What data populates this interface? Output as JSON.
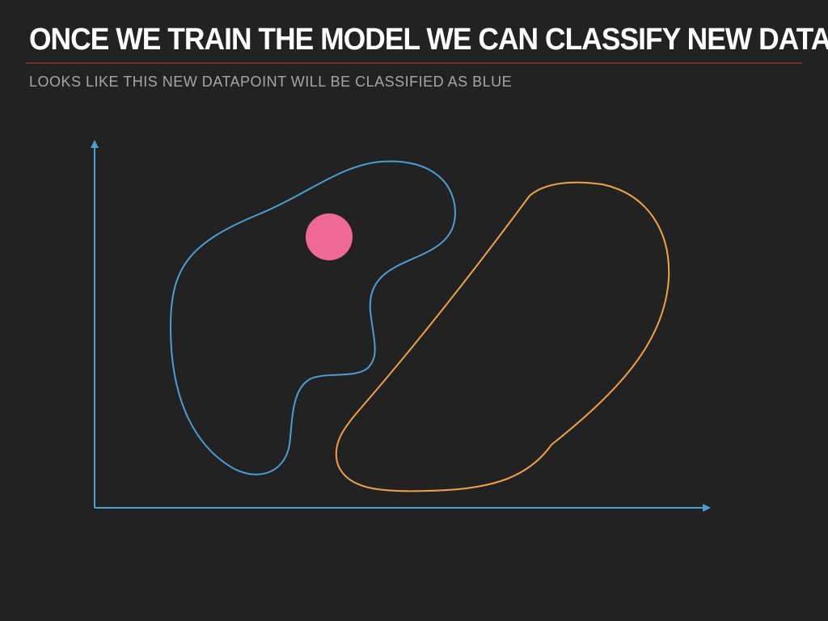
{
  "slide": {
    "title": "ONCE WE TRAIN THE MODEL WE CAN CLASSIFY NEW DATA",
    "subtitle": "LOOKS LIKE THIS NEW DATAPOINT WILL BE CLASSIFIED AS BLUE"
  },
  "colors": {
    "background": "#222222",
    "blue_region": "#4a9fd5",
    "orange_region": "#f0a04b",
    "new_datapoint": "#ef6896",
    "axes": "#4a9fd5"
  }
}
